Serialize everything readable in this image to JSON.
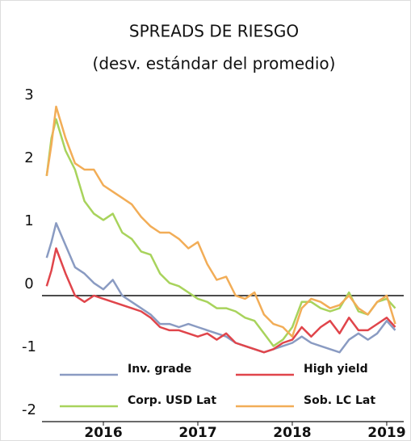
{
  "chart_data": {
    "type": "line",
    "title": "SPREADS DE RIESGO",
    "subtitle": "(desv. estándar del promedio)",
    "x": [
      2015.4,
      2015.45,
      2015.5,
      2015.6,
      2015.7,
      2015.8,
      2015.9,
      2016.0,
      2016.1,
      2016.2,
      2016.3,
      2016.4,
      2016.5,
      2016.6,
      2016.7,
      2016.8,
      2016.9,
      2017.0,
      2017.1,
      2017.2,
      2017.3,
      2017.4,
      2017.5,
      2017.6,
      2017.7,
      2017.8,
      2017.9,
      2018.0,
      2018.1,
      2018.2,
      2018.3,
      2018.4,
      2018.5,
      2018.6,
      2018.7,
      2018.8,
      2018.9,
      2019.0,
      2019.09
    ],
    "series": [
      {
        "name": "Inv. grade",
        "color": "#8a9bc2",
        "values": [
          0.6,
          0.85,
          1.15,
          0.8,
          0.45,
          0.35,
          0.2,
          0.1,
          0.25,
          0.0,
          -0.1,
          -0.2,
          -0.3,
          -0.45,
          -0.45,
          -0.5,
          -0.45,
          -0.5,
          -0.55,
          -0.6,
          -0.65,
          -0.75,
          -0.8,
          -0.85,
          -0.9,
          -0.85,
          -0.8,
          -0.75,
          -0.65,
          -0.75,
          -0.8,
          -0.85,
          -0.9,
          -0.7,
          -0.6,
          -0.7,
          -0.6,
          -0.4,
          -0.55
        ]
      },
      {
        "name": "High yield",
        "color": "#e0454b",
        "values": [
          0.15,
          0.4,
          0.75,
          0.35,
          0.0,
          -0.1,
          0.0,
          -0.05,
          -0.1,
          -0.15,
          -0.2,
          -0.25,
          -0.35,
          -0.5,
          -0.55,
          -0.55,
          -0.6,
          -0.65,
          -0.6,
          -0.7,
          -0.6,
          -0.75,
          -0.8,
          -0.85,
          -0.9,
          -0.85,
          -0.75,
          -0.7,
          -0.5,
          -0.65,
          -0.5,
          -0.4,
          -0.6,
          -0.35,
          -0.55,
          -0.55,
          -0.45,
          -0.35,
          -0.5
        ]
      },
      {
        "name": "Corp. USD Lat",
        "color": "#a8d35c",
        "values": [
          1.9,
          2.5,
          2.8,
          2.3,
          2.0,
          1.5,
          1.3,
          1.2,
          1.3,
          1.0,
          0.9,
          0.7,
          0.65,
          0.35,
          0.2,
          0.15,
          0.05,
          -0.05,
          -0.1,
          -0.2,
          -0.2,
          -0.25,
          -0.35,
          -0.4,
          -0.6,
          -0.8,
          -0.7,
          -0.5,
          -0.1,
          -0.1,
          -0.2,
          -0.25,
          -0.2,
          0.05,
          -0.25,
          -0.3,
          -0.1,
          -0.05,
          -0.2
        ]
      },
      {
        "name": "Sob. LC Lat",
        "color": "#f2ad57",
        "values": [
          1.9,
          2.4,
          3.0,
          2.5,
          2.1,
          2.0,
          2.0,
          1.75,
          1.65,
          1.55,
          1.45,
          1.25,
          1.1,
          1.0,
          1.0,
          0.9,
          0.75,
          0.85,
          0.5,
          0.25,
          0.3,
          0.0,
          -0.05,
          0.05,
          -0.3,
          -0.45,
          -0.5,
          -0.65,
          -0.2,
          -0.05,
          -0.1,
          -0.2,
          -0.15,
          0.0,
          -0.2,
          -0.3,
          -0.1,
          0.0,
          -0.45
        ]
      }
    ],
    "xlim": [
      2015.35,
      2019.18
    ],
    "xticks": [
      2016,
      2017,
      2018,
      2019
    ],
    "ylim": [
      -2,
      3
    ],
    "yticks": [
      -2,
      -1,
      0,
      1,
      2,
      3
    ],
    "legend": "bottom"
  }
}
